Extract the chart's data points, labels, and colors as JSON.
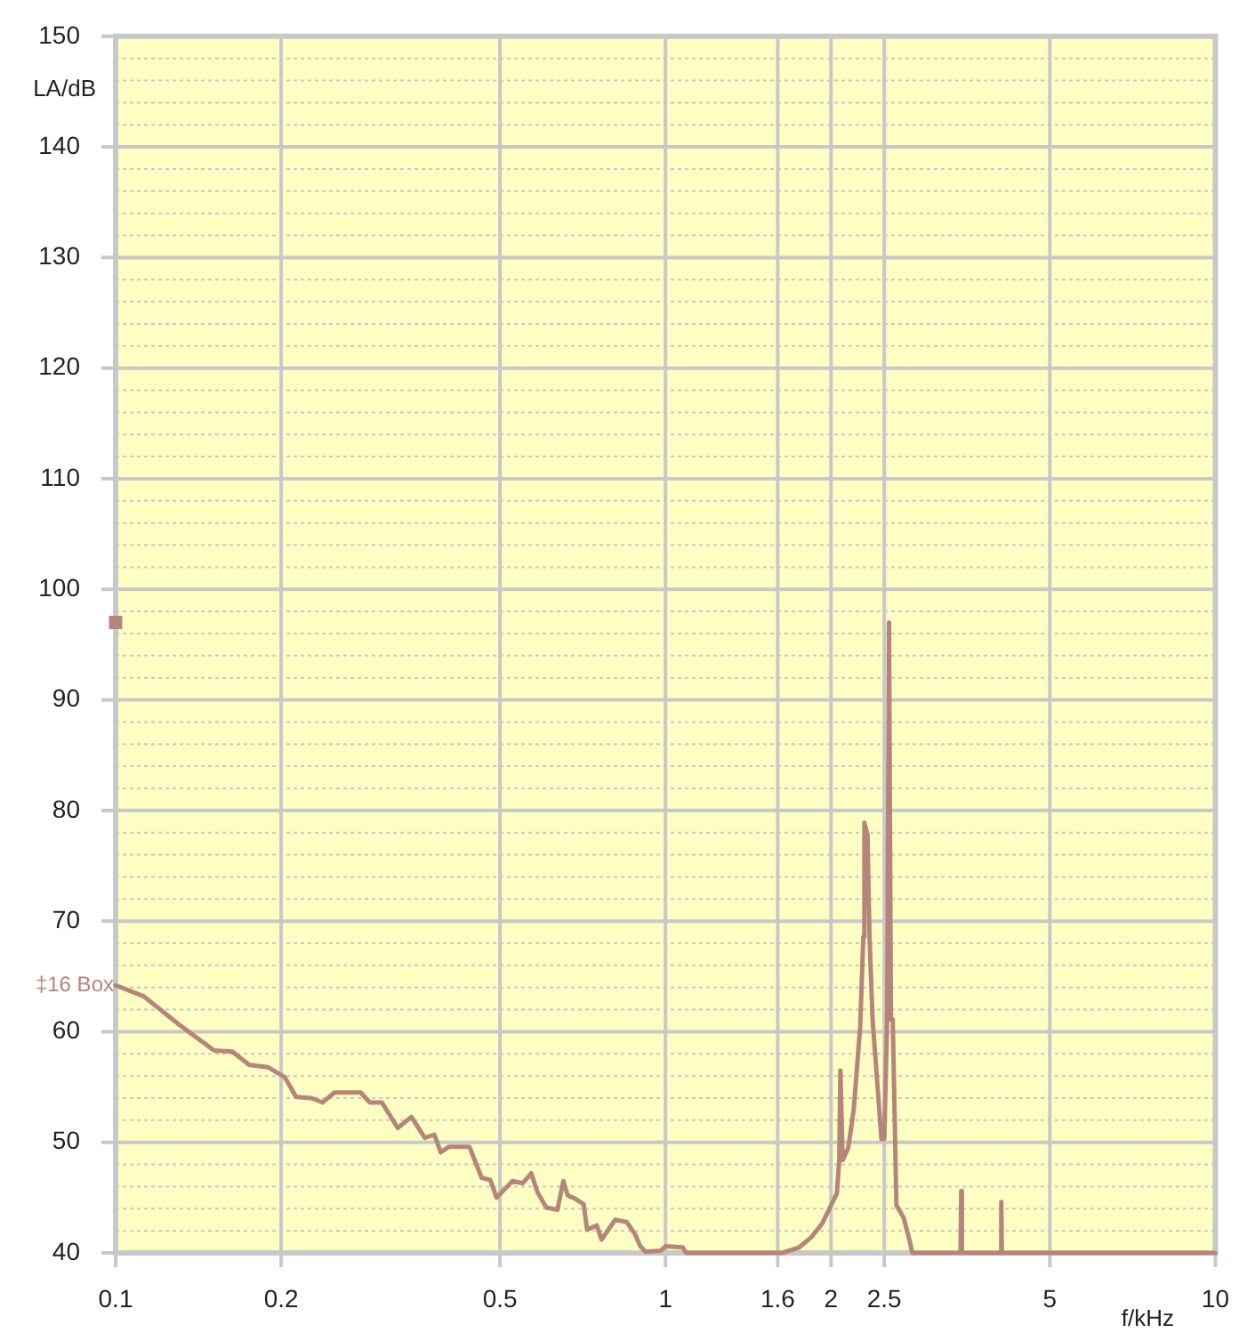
{
  "chart_data": {
    "type": "line",
    "xlabel": "f/kHz",
    "ylabel": "LA/dB",
    "log": "x",
    "xlim": [
      0.1,
      10
    ],
    "xticks": [
      0.1,
      0.2,
      0.5,
      1,
      1.6,
      2,
      2.5,
      5,
      10
    ],
    "ylim": [
      40,
      150
    ],
    "yticks": [
      40,
      {
        "value": 42,
        "label": null
      },
      {
        "value": 44,
        "label": null
      },
      {
        "value": 46,
        "label": null
      },
      {
        "value": 48,
        "label": null
      },
      50,
      {
        "value": 52,
        "label": null
      },
      {
        "value": 54,
        "label": null
      },
      {
        "value": 56,
        "label": null
      },
      {
        "value": 58,
        "label": null
      },
      60,
      {
        "value": 62,
        "label": null
      },
      {
        "value": 64,
        "label": null
      },
      {
        "value": 66,
        "label": null
      },
      {
        "value": 68,
        "label": null
      },
      70,
      {
        "value": 72,
        "label": null
      },
      {
        "value": 74,
        "label": null
      },
      {
        "value": 76,
        "label": null
      },
      {
        "value": 78,
        "label": null
      },
      80,
      {
        "value": 82,
        "label": null
      },
      {
        "value": 84,
        "label": null
      },
      {
        "value": 86,
        "label": null
      },
      {
        "value": 88,
        "label": null
      },
      90,
      {
        "value": 92,
        "label": null
      },
      {
        "value": 94,
        "label": null
      },
      {
        "value": 96,
        "label": null
      },
      {
        "value": 98,
        "label": null
      },
      100,
      {
        "value": 102,
        "label": null
      },
      {
        "value": 104,
        "label": null
      },
      {
        "value": 106,
        "label": null
      },
      {
        "value": 108,
        "label": null
      },
      110,
      {
        "value": 112,
        "label": null
      },
      {
        "value": 114,
        "label": null
      },
      {
        "value": 116,
        "label": null
      },
      {
        "value": 118,
        "label": null
      },
      120,
      {
        "value": 122,
        "label": null
      },
      {
        "value": 124,
        "label": null
      },
      {
        "value": 126,
        "label": null
      },
      {
        "value": 128,
        "label": null
      },
      130,
      {
        "value": 132,
        "label": null
      },
      {
        "value": 134,
        "label": null
      },
      {
        "value": 136,
        "label": null
      },
      {
        "value": 138,
        "label": null
      },
      140,
      {
        "value": 142,
        "label": null
      },
      {
        "value": 144,
        "label": null
      },
      {
        "value": 146,
        "label": null
      },
      {
        "value": 148,
        "label": null
      },
      150
    ],
    "grid": true,
    "legend": false,
    "marker": "none",
    "line_style": "solid",
    "series": [
      {
        "type": "scatter",
        "marker": "square",
        "color": "#b5857a",
        "x": [
          0.1
        ],
        "values": [
          97
        ]
      },
      {
        "name": "‡16 Box",
        "color": "#b5857a",
        "x": [
          0.1,
          0.1125,
          0.13,
          0.151,
          0.163,
          0.175,
          0.189,
          0.203,
          0.213,
          0.227,
          0.238,
          0.25,
          0.279,
          0.29,
          0.305,
          0.326,
          0.345,
          0.365,
          0.38,
          0.39,
          0.404,
          0.44,
          0.463,
          0.48,
          0.493,
          0.527,
          0.55,
          0.57,
          0.585,
          0.607,
          0.636,
          0.652,
          0.664,
          0.685,
          0.71,
          0.72,
          0.75,
          0.765,
          0.81,
          0.85,
          0.88,
          0.9,
          0.92,
          0.98,
          1.0,
          1.075,
          1.09,
          1.63,
          1.75,
          1.84,
          1.93,
          2.0,
          2.05,
          2.07,
          2.08,
          2.1,
          2.15,
          2.2,
          2.26,
          2.29,
          2.3,
          2.33,
          2.35,
          2.38,
          2.43,
          2.47,
          2.5,
          2.53,
          2.55,
          2.57,
          2.59,
          2.63,
          2.71,
          2.78,
          2.81,
          3.44,
          3.45,
          3.46,
          4.07,
          4.08,
          4.09,
          10
        ],
        "values": [
          64.2,
          63.2,
          60.7,
          58.3,
          58.2,
          57.0,
          56.8,
          55.9,
          54.1,
          54.0,
          53.6,
          54.5,
          54.5,
          53.6,
          53.6,
          51.3,
          52.3,
          50.4,
          50.7,
          49.1,
          49.6,
          49.6,
          46.8,
          46.6,
          45.0,
          46.5,
          46.3,
          47.2,
          45.5,
          44.1,
          43.9,
          46.5,
          45.2,
          44.9,
          44.4,
          42.1,
          42.5,
          41.2,
          43.0,
          42.8,
          41.7,
          40.6,
          40.1,
          40.2,
          40.6,
          40.5,
          40,
          40,
          40.5,
          41.4,
          42.7,
          44.3,
          45.4,
          48.4,
          56.5,
          48.4,
          49.5,
          53.0,
          60.5,
          68.6,
          78.9,
          77.8,
          68.6,
          61.1,
          55.1,
          50.3,
          50.3,
          61.1,
          97.0,
          61.1,
          61.1,
          44.3,
          43.2,
          41.1,
          40,
          40,
          45.6,
          40,
          40,
          44.6,
          40,
          40
        ]
      }
    ]
  }
}
